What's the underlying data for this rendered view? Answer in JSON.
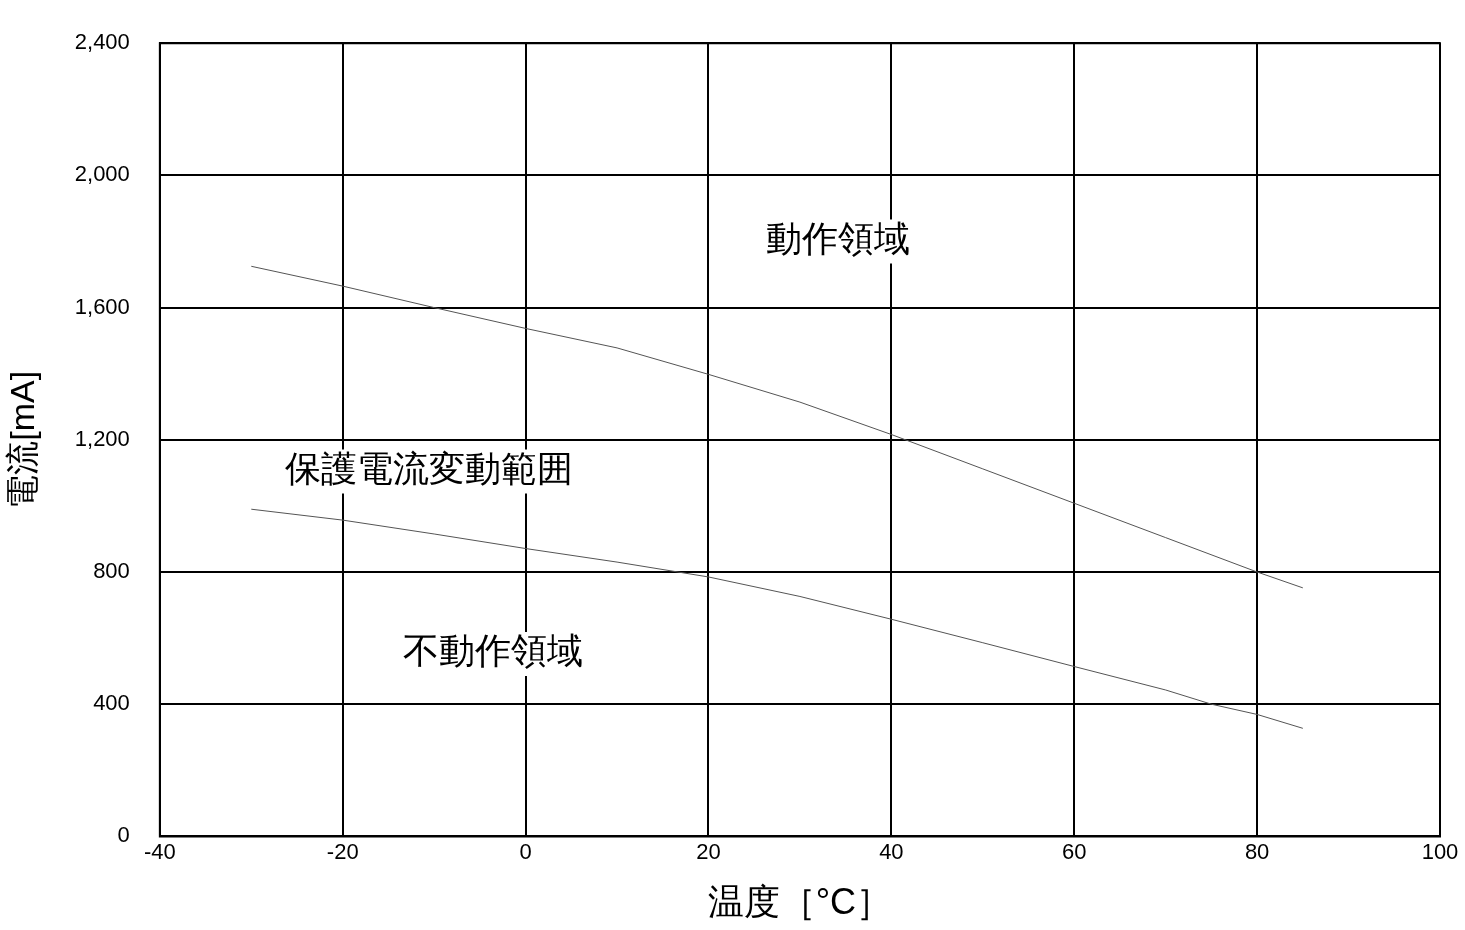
{
  "chart_data": {
    "type": "line",
    "xlabel": "温度［°C］",
    "ylabel": "電流[mA]",
    "xlim": [
      -40,
      100
    ],
    "xticks": [
      -40,
      -20,
      0,
      20,
      40,
      60,
      80,
      100
    ],
    "ylim": [
      0,
      2400
    ],
    "yticks": [
      0,
      {
        "value": 400,
        "label": "400"
      },
      {
        "value": 800,
        "label": "800"
      },
      {
        "value": 1200,
        "label": "1,200"
      },
      {
        "value": 1600,
        "label": "1,600"
      },
      {
        "value": 2000,
        "label": "2,000"
      },
      {
        "value": 2400,
        "label": "2,400"
      }
    ],
    "grid": true,
    "legend": false,
    "marker": "none",
    "line_style": "solid",
    "series": [
      {
        "color": "#555555",
        "x": [
          -30,
          -20,
          -10,
          0,
          10,
          20,
          30,
          40,
          50,
          60,
          70,
          80,
          85
        ],
        "values": [
          1725,
          1665,
          1600,
          1537,
          1478,
          1398,
          1314,
          1216,
          1112,
          1008,
          904,
          800,
          752
        ]
      },
      {
        "color": "#555555",
        "x": [
          -30,
          -20,
          -10,
          0,
          10,
          20,
          30,
          40,
          50,
          60,
          70,
          75,
          80,
          85
        ],
        "values": [
          990,
          957,
          915,
          871,
          830,
          785,
          726,
          657,
          586,
          514,
          443,
          400,
          369,
          327
        ]
      }
    ],
    "annotations": [
      "動作領域",
      "保護電流変動範囲",
      "不動作領域"
    ]
  }
}
